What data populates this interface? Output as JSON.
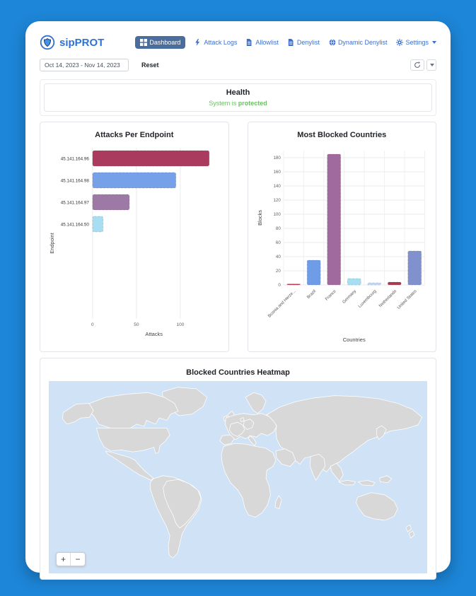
{
  "app": {
    "brand": "sipPROT",
    "accent_blue": "#1d86d8",
    "nav_active_bg": "#4a6d9e"
  },
  "nav": {
    "items": [
      {
        "label": "Dashboard",
        "icon": "dashboard-icon",
        "active": true
      },
      {
        "label": "Attack Logs",
        "icon": "bolt-icon",
        "active": false
      },
      {
        "label": "Allowlist",
        "icon": "document-icon",
        "active": false
      },
      {
        "label": "Denylist",
        "icon": "document-icon",
        "active": false
      },
      {
        "label": "Dynamic Denylist",
        "icon": "globe-icon",
        "active": false
      },
      {
        "label": "Settings",
        "icon": "gear-icon",
        "active": false
      }
    ]
  },
  "toolbar": {
    "date_range_value": "Oct 14, 2023 - Nov 14, 2023",
    "reset_label": "Reset"
  },
  "health": {
    "title": "Health",
    "status_prefix": "System is ",
    "status_emphasis": "protected",
    "status_color": "#6dbf64"
  },
  "chart_data": [
    {
      "type": "bar",
      "orientation": "horizontal",
      "title": "Attacks Per Endpoint",
      "categories": [
        "45.141.164.96",
        "45.141.164.98",
        "45.141.164.97",
        "45.141.164.50"
      ],
      "values": [
        133,
        95,
        42,
        12
      ],
      "colors": [
        "#ab3b5e",
        "#76a0e8",
        "#9d79a6",
        "#a8def2"
      ],
      "xlabel": "Attacks",
      "ylabel": "Endpoint",
      "xticks": [
        0,
        50,
        100
      ],
      "xlim": [
        0,
        140
      ],
      "grid": true,
      "legend": false
    },
    {
      "type": "bar",
      "orientation": "vertical",
      "title": "Most Blocked Countries",
      "categories": [
        "Bosnia and Herze...",
        "Brazil",
        "France",
        "Germany",
        "Luxembourg",
        "Netherlands",
        "United States"
      ],
      "values": [
        1,
        35,
        185,
        9,
        3,
        4,
        48
      ],
      "colors": [
        "#c4374a",
        "#6f9ce6",
        "#a06a9e",
        "#a8def2",
        "#c5d8f2",
        "#ab3a50",
        "#8191ce"
      ],
      "xlabel": "Countries",
      "ylabel": "Blocks",
      "yticks": [
        0,
        20,
        40,
        60,
        80,
        100,
        120,
        140,
        160,
        180
      ],
      "ylim": [
        0,
        190
      ],
      "grid": true,
      "legend": false
    }
  ],
  "heatmap": {
    "title": "Blocked Countries Heatmap",
    "ocean": "#cfe2f6",
    "land": "#d8d8d8",
    "countries": {
      "united_states": "#f29cb0",
      "brazil": "#f8b9c4",
      "france": "#c8123e",
      "germany": "#fbeaee",
      "netherlands": "#f6dde3"
    },
    "zoom_in_label": "+",
    "zoom_out_label": "−"
  }
}
